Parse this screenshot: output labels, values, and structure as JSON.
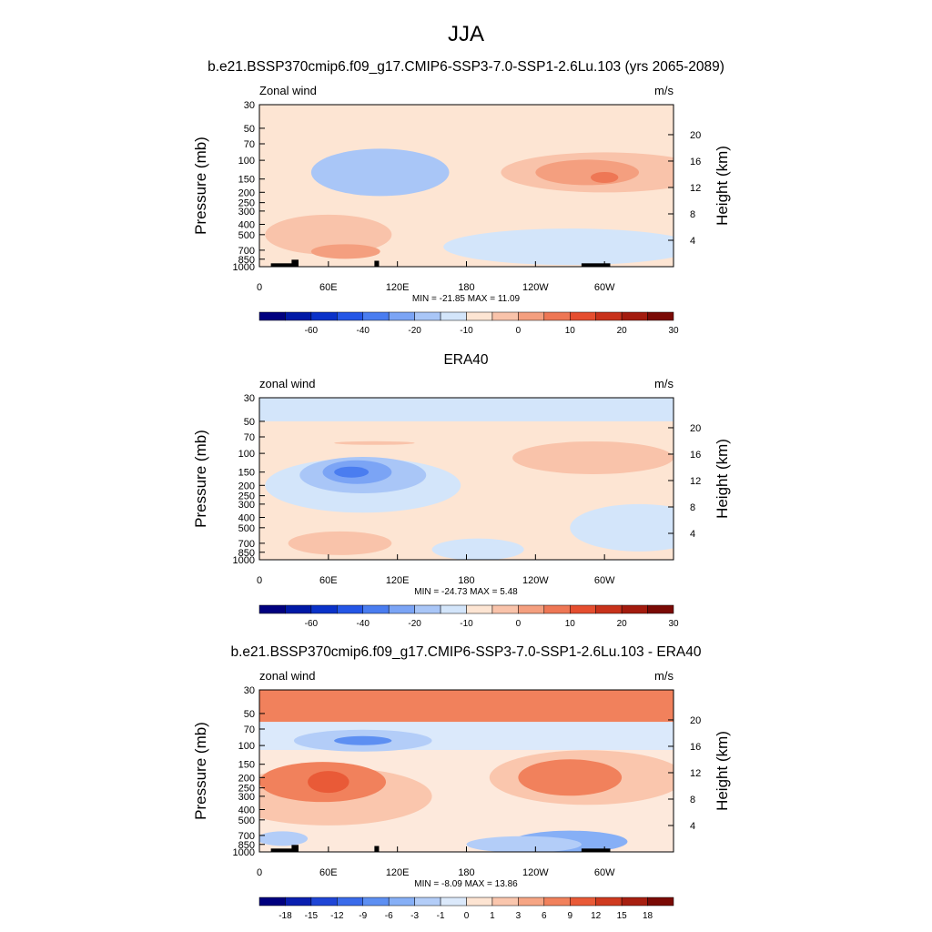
{
  "figure": {
    "season": "JJA"
  },
  "colors": {
    "abs_scale": [
      "#00007f",
      "#0019a6",
      "#0a32c9",
      "#2456e6",
      "#4a7df0",
      "#7ba4f5",
      "#a9c6f7",
      "#d3e5fa",
      "#fde5d3",
      "#f9c3aa",
      "#f49f7f",
      "#ee7755",
      "#e54e2f",
      "#c8321b",
      "#a31b0e",
      "#7a0a05"
    ],
    "tiny_neg": "#eaf2fb",
    "tiny_pos": "#fff1e6",
    "topo": "#000000"
  },
  "chart_data": [
    {
      "type": "heatmap",
      "title": "b.e21.BSSP370cmip6.f09_g17.CMIP6-SSP3-7.0-SSP1-2.6Lu.103 (yrs 2065-2089)",
      "left_label": "Zonal wind",
      "right_label": "m/s",
      "ylabel": "Pressure (mb)",
      "ylabel_right": "Height (km)",
      "x_ticks": [
        "0",
        "60E",
        "120E",
        "180",
        "120W",
        "60W"
      ],
      "y_ticks": [
        "30",
        "50",
        "70",
        "100",
        "150",
        "200",
        "250",
        "300",
        "400",
        "500",
        "700",
        "850",
        "1000"
      ],
      "height_ticks": [
        "20",
        "16",
        "12",
        "8",
        "4"
      ],
      "stats": "MIN = -21.85  MAX =  11.09",
      "colorbar_labels": [
        "-60",
        "-40",
        "-20",
        "-10",
        "0",
        "10",
        "20",
        "30"
      ],
      "features": [
        {
          "kind": "ellipse",
          "lon": 105,
          "p": 130,
          "rx": 45,
          "ry": 2.0,
          "fill": 5
        },
        {
          "kind": "ellipse",
          "lon": 85,
          "p": 120,
          "rx": 28,
          "ry": 1.6,
          "fill": 4
        },
        {
          "kind": "ellipse",
          "lon": 82,
          "p": 115,
          "rx": 12,
          "ry": 1.0,
          "fill": 3
        },
        {
          "kind": "ellipse",
          "lon": 105,
          "p": 130,
          "rx": 60,
          "ry": 2.6,
          "fill": 6
        },
        {
          "kind": "ellipse",
          "lon": 300,
          "p": 130,
          "rx": 90,
          "ry": 2.2,
          "fill": 9
        },
        {
          "kind": "ellipse",
          "lon": 285,
          "p": 130,
          "rx": 45,
          "ry": 1.4,
          "fill": 10
        },
        {
          "kind": "ellipse",
          "lon": 300,
          "p": 145,
          "rx": 12,
          "ry": 0.6,
          "fill": 11
        },
        {
          "kind": "ellipse",
          "lon": 60,
          "p": 500,
          "rx": 55,
          "ry": 2.2,
          "fill": 9
        },
        {
          "kind": "ellipse",
          "lon": 75,
          "p": 720,
          "rx": 30,
          "ry": 0.8,
          "fill": 10
        },
        {
          "kind": "ellipse",
          "lon": 270,
          "p": 650,
          "rx": 110,
          "ry": 2.0,
          "fill": 7
        }
      ],
      "topo": [
        [
          10,
          30,
          1000,
          930
        ],
        [
          28,
          34,
          1000,
          860
        ],
        [
          100,
          104,
          1000,
          880
        ],
        [
          280,
          305,
          1000,
          930
        ]
      ]
    },
    {
      "type": "heatmap",
      "title": "ERA40",
      "left_label": "zonal wind",
      "right_label": "m/s",
      "ylabel": "Pressure (mb)",
      "ylabel_right": "Height (km)",
      "x_ticks": [
        "0",
        "60E",
        "120E",
        "180",
        "120W",
        "60W"
      ],
      "y_ticks": [
        "30",
        "50",
        "70",
        "100",
        "150",
        "200",
        "250",
        "300",
        "400",
        "500",
        "700",
        "850",
        "1000"
      ],
      "height_ticks": [
        "20",
        "16",
        "12",
        "8",
        "4"
      ],
      "stats": "MIN = -24.73  MAX =   5.48",
      "colorbar_labels": [
        "-60",
        "-40",
        "-20",
        "-10",
        "0",
        "10",
        "20",
        "30"
      ],
      "features": [
        {
          "kind": "band",
          "p1": 30,
          "p2": 50,
          "fill": 7
        },
        {
          "kind": "ellipse",
          "lon": 90,
          "p": 200,
          "rx": 85,
          "ry": 3.0,
          "fill": 7
        },
        {
          "kind": "ellipse",
          "lon": 90,
          "p": 160,
          "rx": 55,
          "ry": 2.0,
          "fill": 6
        },
        {
          "kind": "ellipse",
          "lon": 85,
          "p": 150,
          "rx": 30,
          "ry": 1.3,
          "fill": 5
        },
        {
          "kind": "ellipse",
          "lon": 80,
          "p": 150,
          "rx": 15,
          "ry": 0.6,
          "fill": 4
        },
        {
          "kind": "ellipse",
          "lon": 290,
          "p": 110,
          "rx": 70,
          "ry": 1.8,
          "fill": 9
        },
        {
          "kind": "ellipse",
          "lon": 100,
          "p": 80,
          "rx": 35,
          "ry": 0.2,
          "fill": 9
        },
        {
          "kind": "ellipse",
          "lon": 70,
          "p": 700,
          "rx": 45,
          "ry": 1.3,
          "fill": 9
        },
        {
          "kind": "ellipse",
          "lon": 330,
          "p": 500,
          "rx": 60,
          "ry": 2.6,
          "fill": 7
        },
        {
          "kind": "ellipse",
          "lon": 190,
          "p": 800,
          "rx": 40,
          "ry": 1.2,
          "fill": 7
        }
      ],
      "topo": []
    },
    {
      "type": "heatmap",
      "title": "b.e21.BSSP370cmip6.f09_g17.CMIP6-SSP3-7.0-SSP1-2.6Lu.103 - ERA40",
      "left_label": "zonal wind",
      "right_label": "m/s",
      "ylabel": "Pressure (mb)",
      "ylabel_right": "Height (km)",
      "x_ticks": [
        "0",
        "60E",
        "120E",
        "180",
        "120W",
        "60W"
      ],
      "y_ticks": [
        "30",
        "50",
        "70",
        "100",
        "150",
        "200",
        "250",
        "300",
        "400",
        "500",
        "700",
        "850",
        "1000"
      ],
      "height_ticks": [
        "20",
        "16",
        "12",
        "8",
        "4"
      ],
      "stats": "MIN =  -8.09  MAX =  13.86",
      "colorbar_labels": [
        "-18",
        "-15",
        "-12",
        "-9",
        "-6",
        "-3",
        "-1",
        "0",
        "1",
        "3",
        "6",
        "9",
        "12",
        "15",
        "18"
      ],
      "features": [
        {
          "kind": "band",
          "p1": 30,
          "p2": 60,
          "fill": 11
        },
        {
          "kind": "band",
          "p1": 60,
          "p2": 110,
          "fill": 7
        },
        {
          "kind": "ellipse",
          "lon": 90,
          "p": 90,
          "rx": 60,
          "ry": 1.2,
          "fill": 6
        },
        {
          "kind": "ellipse",
          "lon": 90,
          "p": 90,
          "rx": 25,
          "ry": 0.5,
          "fill": 4
        },
        {
          "kind": "ellipse",
          "lon": 60,
          "p": 300,
          "rx": 90,
          "ry": 3.2,
          "fill": 9
        },
        {
          "kind": "ellipse",
          "lon": 55,
          "p": 220,
          "rx": 55,
          "ry": 2.2,
          "fill": 11
        },
        {
          "kind": "ellipse",
          "lon": 60,
          "p": 220,
          "rx": 18,
          "ry": 1.2,
          "fill": 12
        },
        {
          "kind": "ellipse",
          "lon": 285,
          "p": 200,
          "rx": 85,
          "ry": 3.0,
          "fill": 9
        },
        {
          "kind": "ellipse",
          "lon": 270,
          "p": 200,
          "rx": 45,
          "ry": 2.0,
          "fill": 11
        },
        {
          "kind": "ellipse",
          "lon": 270,
          "p": 800,
          "rx": 50,
          "ry": 1.2,
          "fill": 5
        },
        {
          "kind": "ellipse",
          "lon": 20,
          "p": 750,
          "rx": 22,
          "ry": 0.8,
          "fill": 6
        },
        {
          "kind": "ellipse",
          "lon": 230,
          "p": 850,
          "rx": 50,
          "ry": 0.9,
          "fill": 6
        }
      ],
      "topo": [
        [
          10,
          30,
          1000,
          930
        ],
        [
          28,
          34,
          1000,
          860
        ],
        [
          100,
          104,
          1000,
          880
        ],
        [
          280,
          305,
          1000,
          930
        ]
      ]
    }
  ]
}
